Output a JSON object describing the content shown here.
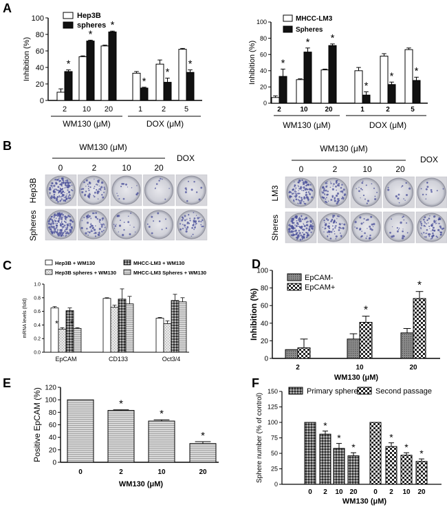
{
  "figure": {
    "panel_labels": [
      "A",
      "B",
      "C",
      "D",
      "E",
      "F"
    ],
    "panel_b": {
      "left": {
        "header": "WM130 (μM)",
        "doses": [
          "0",
          "2",
          "10",
          "20"
        ],
        "dox_label": "DOX",
        "rows": [
          "Hep3B",
          "Spheres"
        ]
      },
      "right": {
        "header": "WM130 (μM)",
        "doses": [
          "0",
          "2",
          "10",
          "20"
        ],
        "dox_label": "DOX",
        "rows": [
          "LM3",
          "Sheres"
        ]
      }
    }
  },
  "chart_data": [
    {
      "id": "A1",
      "type": "bar",
      "ylabel": "Inhibition (%)",
      "ylim": [
        0,
        100
      ],
      "yticks": [
        0,
        20,
        40,
        60,
        80,
        100
      ],
      "categories": [
        "2",
        "10",
        "20",
        "1",
        "2",
        "5"
      ],
      "group_labels": [
        "WM130 (μM)",
        "DOX (μM)"
      ],
      "series": [
        {
          "name": "Hep3B",
          "values": [
            10,
            53,
            66,
            33,
            44,
            62
          ],
          "errors": [
            4,
            1,
            1,
            2,
            5,
            1
          ]
        },
        {
          "name": "spheres",
          "values": [
            35,
            72,
            83,
            15,
            22,
            34
          ],
          "errors": [
            2,
            1,
            1,
            1,
            5,
            3
          ]
        }
      ],
      "significance": [
        "*",
        "*",
        "*",
        "*",
        "*",
        "*"
      ]
    },
    {
      "id": "A2",
      "type": "bar",
      "ylabel": "Inhibition (%)",
      "ylim": [
        0,
        100
      ],
      "yticks": [
        0,
        20,
        40,
        60,
        80,
        100
      ],
      "categories": [
        "2",
        "10",
        "20",
        "1",
        "2",
        "5"
      ],
      "group_labels": [
        "WM130 (μM)",
        "DOX (μM)"
      ],
      "series": [
        {
          "name": "MHCC-LM3",
          "values": [
            7,
            29,
            41,
            40,
            58,
            66
          ],
          "errors": [
            2,
            1,
            1,
            4,
            3,
            2
          ]
        },
        {
          "name": "Spheres",
          "values": [
            33,
            63,
            71,
            10,
            23,
            28
          ],
          "errors": [
            9,
            5,
            2,
            4,
            3,
            4
          ]
        }
      ],
      "significance": [
        "*",
        "*",
        "*",
        "*",
        "*",
        "*"
      ]
    },
    {
      "id": "C",
      "type": "bar",
      "ylabel": "mRNA levels (fold)",
      "ylim": [
        0,
        1.0
      ],
      "yticks": [
        0.0,
        0.2,
        0.4,
        0.6,
        0.8,
        1.0
      ],
      "categories": [
        "EpCAM",
        "CD133",
        "Oct3/4"
      ],
      "series": [
        {
          "name": "Hep3B + WM130",
          "values": [
            0.65,
            0.79,
            0.5
          ],
          "errors": [
            0.02,
            0.01,
            0.01
          ]
        },
        {
          "name": "Hep3B spheres + WM130",
          "values": [
            0.34,
            0.66,
            0.42
          ],
          "errors": [
            0.02,
            0.03,
            0.04
          ]
        },
        {
          "name": "MHCC-LM3 + WM130",
          "values": [
            0.61,
            0.78,
            0.76
          ],
          "errors": [
            0.04,
            0.15,
            0.09
          ]
        },
        {
          "name": "MHCC-LM3 Spheres + WM130",
          "values": [
            0.35,
            0.71,
            0.74
          ],
          "errors": [
            0.01,
            0.11,
            0.06
          ]
        }
      ],
      "significance_label": "*"
    },
    {
      "id": "D",
      "type": "bar",
      "ylabel": "Inhibition (%)",
      "xlabel": "WM130 (μM)",
      "ylim": [
        0,
        100
      ],
      "yticks": [
        0,
        20,
        40,
        60,
        80,
        100
      ],
      "categories": [
        "2",
        "10",
        "20"
      ],
      "series": [
        {
          "name": "EpCAM-",
          "values": [
            10,
            22,
            29
          ],
          "errors": [
            0,
            6,
            5
          ]
        },
        {
          "name": "EpCAM+",
          "values": [
            12,
            41,
            68
          ],
          "errors": [
            10,
            7,
            8
          ]
        }
      ],
      "significance": [
        "",
        "*",
        "*"
      ]
    },
    {
      "id": "E",
      "type": "bar",
      "ylabel": "Positive EpCAM (%)",
      "xlabel": "WM130 (μM)",
      "ylim": [
        0,
        120
      ],
      "yticks": [
        0,
        20,
        40,
        60,
        80,
        100,
        120
      ],
      "categories": [
        "0",
        "2",
        "10",
        "20"
      ],
      "series": [
        {
          "name": "Positive EpCAM",
          "values": [
            100,
            83,
            66,
            30
          ],
          "errors": [
            0,
            1,
            2,
            3
          ]
        }
      ],
      "significance": [
        "",
        "*",
        "*",
        "*"
      ]
    },
    {
      "id": "F",
      "type": "bar",
      "ylabel": "Sphere number (% of control)",
      "xlabel": "WM130 (μM)",
      "ylim": [
        0,
        150
      ],
      "yticks": [
        0,
        25,
        50,
        75,
        100,
        125,
        150
      ],
      "categories": [
        "0",
        "2",
        "10",
        "20"
      ],
      "series": [
        {
          "name": "Primary spheres",
          "values": [
            100,
            81,
            58,
            46
          ],
          "errors": [
            0,
            5,
            8,
            5
          ]
        },
        {
          "name": "Second passage",
          "values": [
            100,
            61,
            47,
            37
          ],
          "errors": [
            0,
            6,
            4,
            4
          ]
        }
      ],
      "significance": [
        "",
        "*",
        "*",
        "*"
      ]
    }
  ]
}
